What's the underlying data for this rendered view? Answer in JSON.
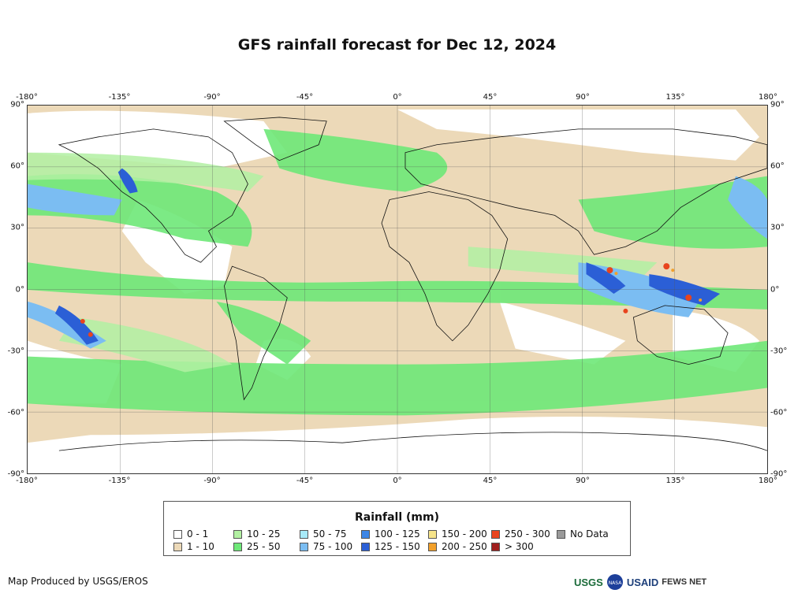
{
  "title": "GFS rainfall forecast for Dec 12, 2024",
  "lon_ticks": [
    "-180°",
    "-135°",
    "-90°",
    "-45°",
    "0°",
    "45°",
    "90°",
    "135°",
    "180°"
  ],
  "lat_ticks": [
    "90°",
    "60°",
    "30°",
    "0°",
    "-30°",
    "-60°",
    "-90°"
  ],
  "legend": {
    "title": "Rainfall (mm)",
    "items": [
      {
        "label": "0 - 1",
        "color": "#ffffff"
      },
      {
        "label": "1 - 10",
        "color": "#ecd9b8"
      },
      {
        "label": "10 - 25",
        "color": "#b2f0a2"
      },
      {
        "label": "25 - 50",
        "color": "#6ee878"
      },
      {
        "label": "50 - 75",
        "color": "#a8eaf8"
      },
      {
        "label": "75 - 100",
        "color": "#7bbdf2"
      },
      {
        "label": "100 - 125",
        "color": "#3d86e6"
      },
      {
        "label": "125 - 150",
        "color": "#2b5fd6"
      },
      {
        "label": "150 - 200",
        "color": "#f6e48a"
      },
      {
        "label": "200 - 250",
        "color": "#f2a02a"
      },
      {
        "label": "250 - 300",
        "color": "#e8441e"
      },
      {
        "label": "> 300",
        "color": "#a0201e"
      },
      {
        "label": "No Data",
        "color": "#9a9a9a"
      }
    ]
  },
  "credit": "Map Produced by USGS/EROS",
  "logos": {
    "usgs": "USGS",
    "nasa": "NASA",
    "usaid": "USAID",
    "fewsnet": "FEWS NET"
  }
}
